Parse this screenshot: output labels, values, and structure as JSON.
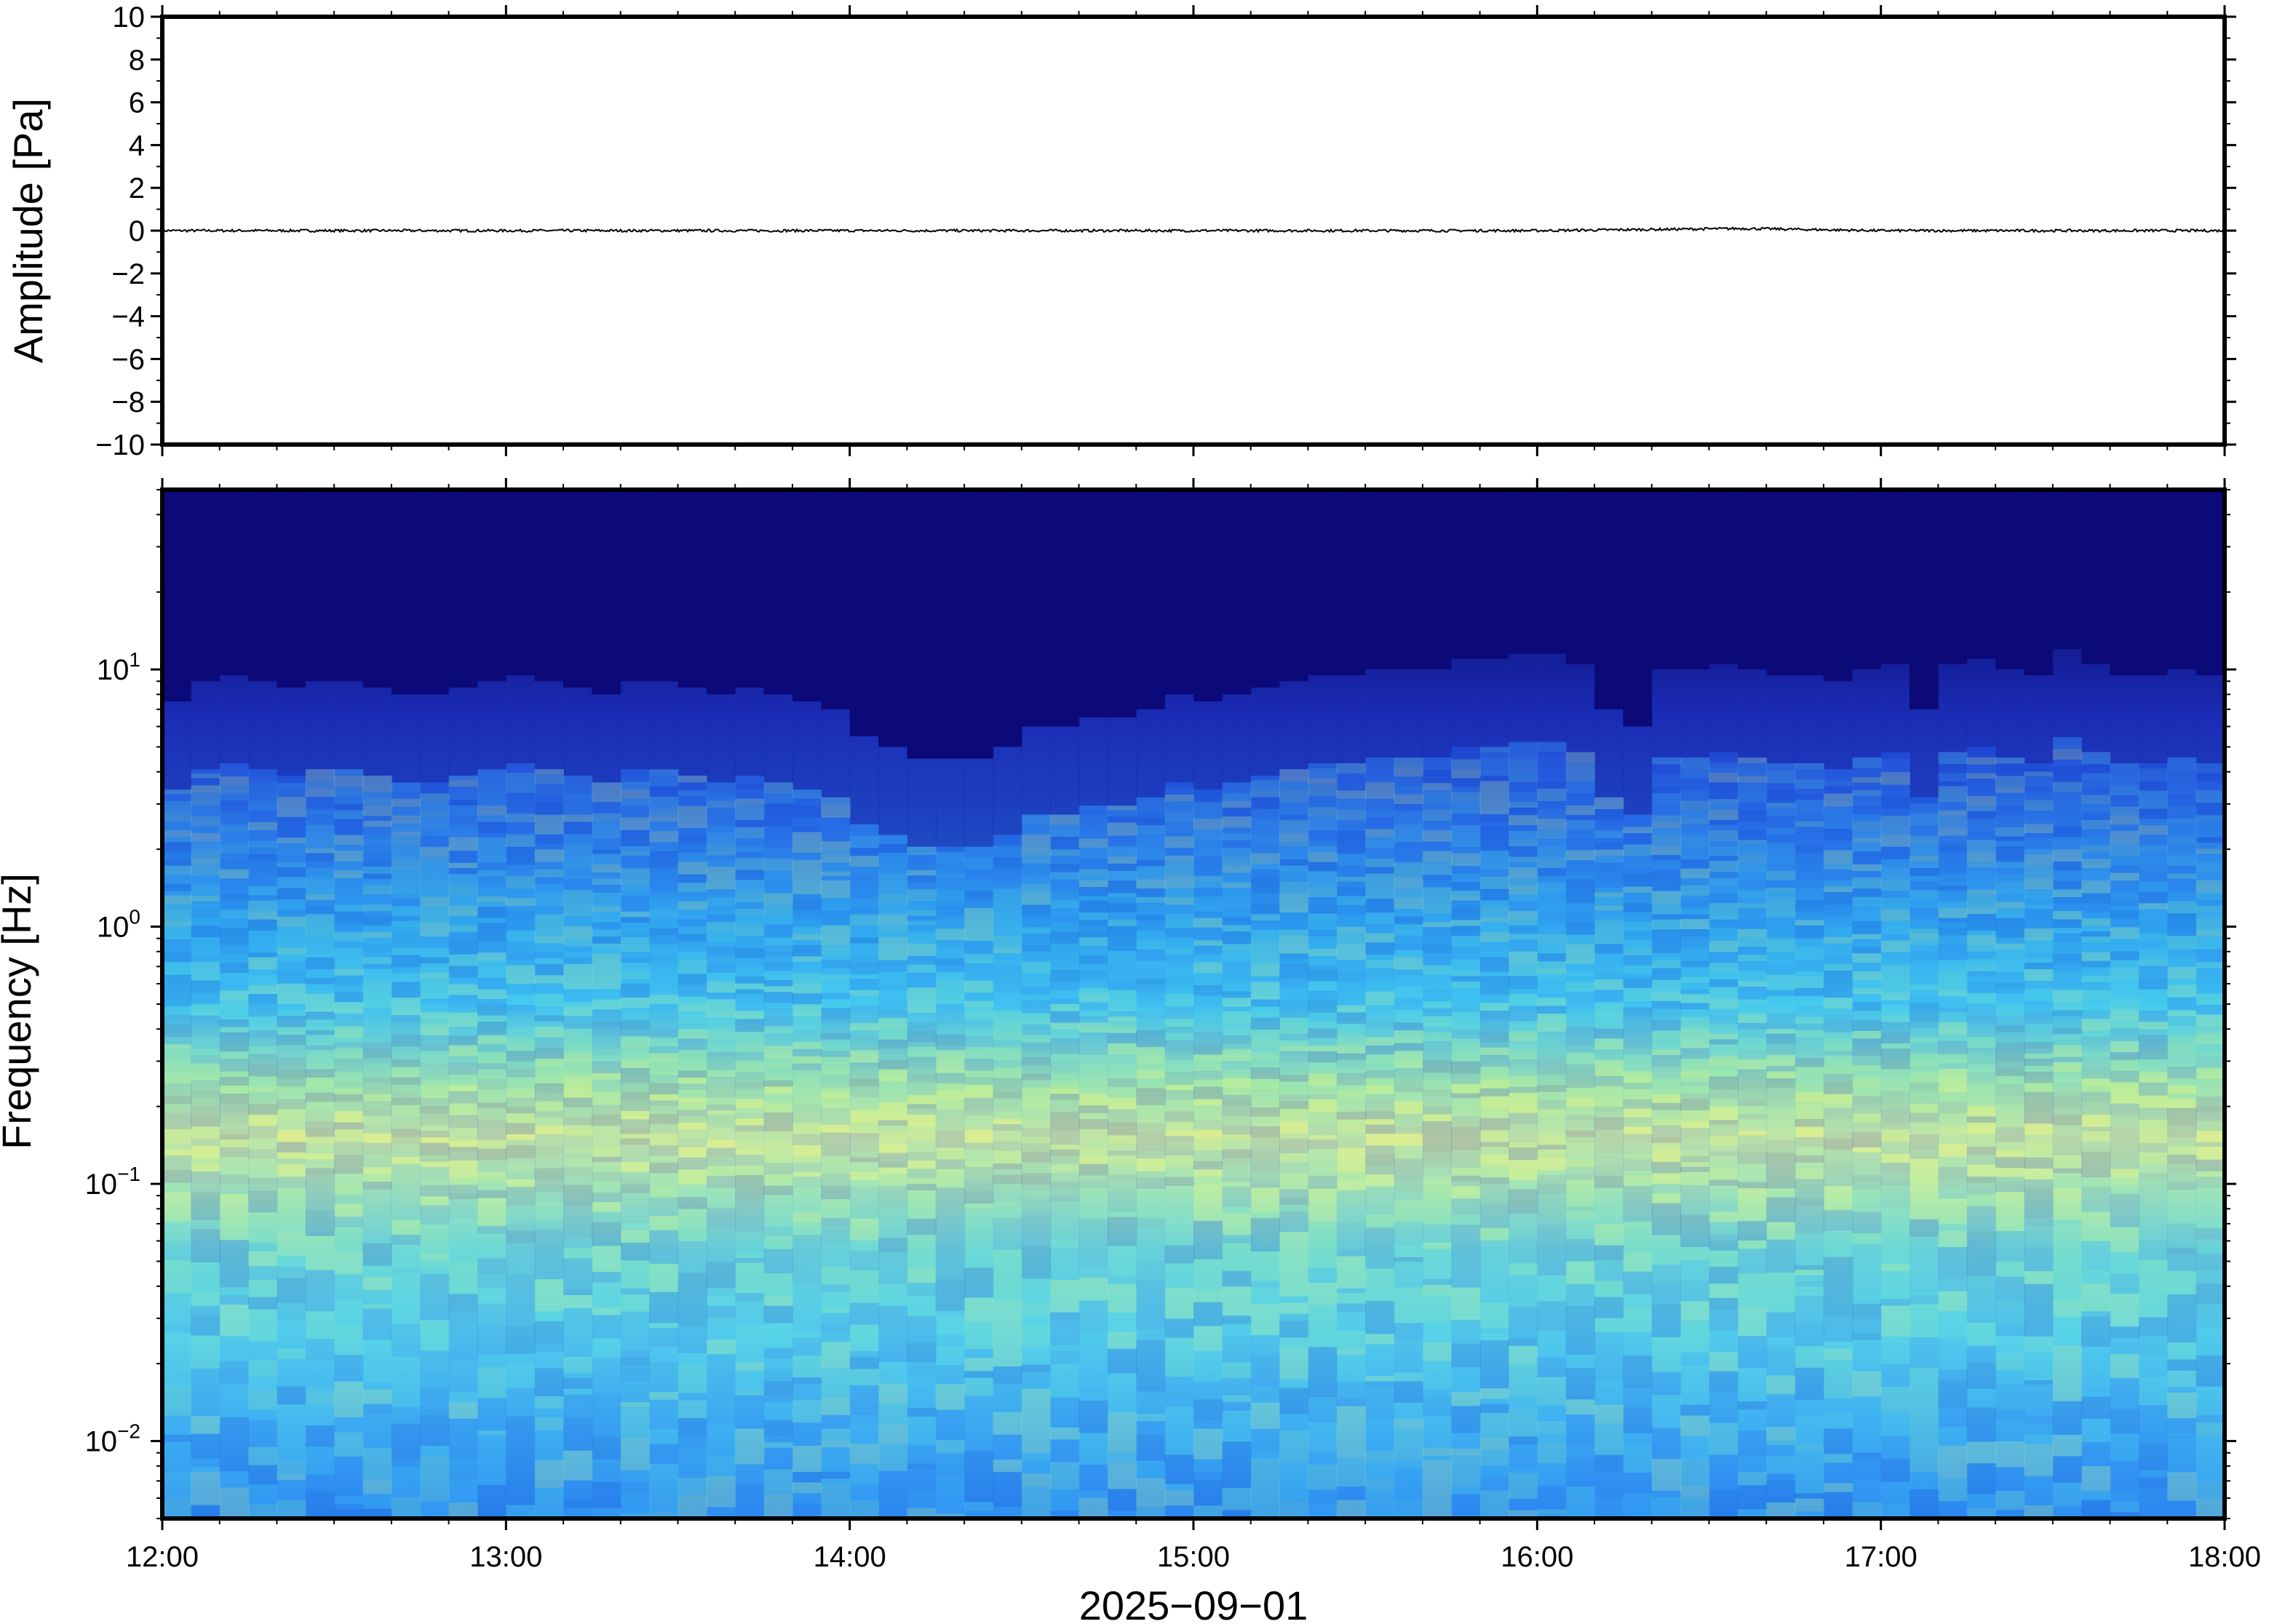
{
  "chart_data": [
    {
      "type": "line",
      "panel": "waveform",
      "title": "",
      "xlabel": "",
      "ylabel": "Amplitude [Pa]",
      "ylim": [
        -10,
        10
      ],
      "y_ticks": [
        -10,
        -8,
        -6,
        -4,
        -2,
        0,
        2,
        4,
        6,
        8,
        10
      ],
      "y_tick_labels": [
        "−10",
        "−8",
        "−6",
        "−4",
        "−2",
        "0",
        "2",
        "4",
        "6",
        "8",
        "10"
      ],
      "xlim": [
        "12:00",
        "18:00"
      ],
      "series": [
        {
          "x": [
            "12:00",
            "13:00",
            "14:00",
            "15:00",
            "16:00",
            "16:36",
            "17:00",
            "18:00"
          ],
          "y": [
            0,
            0,
            0,
            0,
            0,
            0.1,
            0,
            0
          ]
        }
      ],
      "grid": false
    },
    {
      "type": "heatmap",
      "panel": "spectrogram",
      "title": "",
      "xlabel": "2025−09−01",
      "ylabel": "Frequency [Hz]",
      "y_scale": "log",
      "ylim_hz": [
        0.005,
        50
      ],
      "y_ticks_hz": [
        0.01,
        0.1,
        1,
        10
      ],
      "y_tick_labels": [
        {
          "base": "10",
          "exp": "−2"
        },
        {
          "base": "10",
          "exp": "−1"
        },
        {
          "base": "10",
          "exp": "0"
        },
        {
          "base": "10",
          "exp": "1"
        }
      ],
      "x_ticks": [
        "12:00",
        "13:00",
        "14:00",
        "15:00",
        "16:00",
        "17:00",
        "18:00"
      ],
      "colormap": "jet-like (dark navy low, cyan mid, yellow high)",
      "colors": {
        "low": "#0b0a78",
        "mid": "#3fc8f0",
        "high": "#f0e68c"
      },
      "time_columns": 72,
      "upper_cutoff_hz_by_column": [
        7.5,
        9,
        9.5,
        9,
        8.5,
        9,
        9,
        8.5,
        8,
        8,
        8.5,
        9,
        9.5,
        9,
        8.5,
        8,
        9,
        9,
        8.5,
        8,
        8.5,
        8,
        7.5,
        7,
        5.5,
        5,
        4.5,
        4.5,
        4.5,
        5,
        6,
        6,
        6.5,
        6.5,
        7,
        8,
        7.5,
        8,
        8.5,
        9,
        9.5,
        9.5,
        10,
        10,
        10,
        11,
        11,
        11.5,
        11.5,
        10.5,
        7,
        6,
        10,
        10,
        10.5,
        10,
        9.5,
        9.5,
        9,
        10,
        10.5,
        7,
        10.5,
        11,
        10,
        9.5,
        12,
        10.5,
        9.5,
        9.5,
        10,
        9.5
      ],
      "grid": false
    }
  ]
}
